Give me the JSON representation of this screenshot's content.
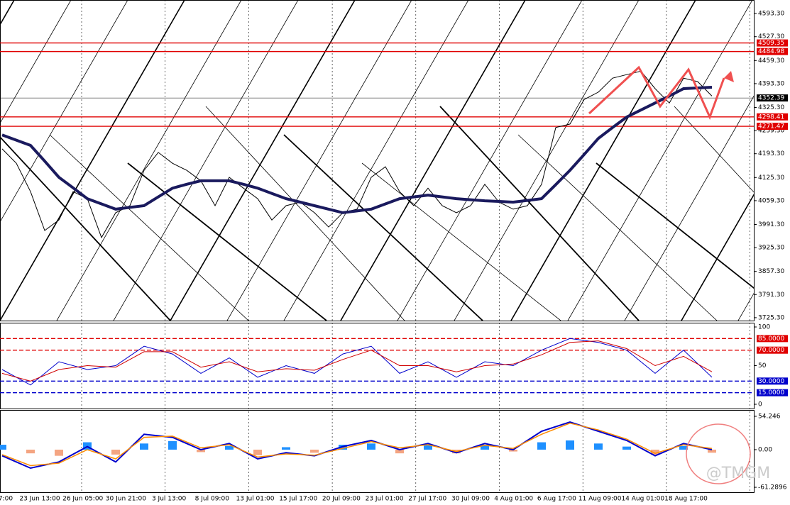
{
  "chart_data": [
    {
      "type": "line",
      "series": [
        {
          "color": "#000000",
          "width": 1,
          "values": [
            4207,
            4166,
            4085,
            3974,
            4004,
            4085,
            4065,
            3954,
            4025,
            4045,
            4146,
            4197,
            4166,
            4146,
            4116,
            4045,
            4126,
            4095,
            4065,
            4004,
            4045,
            4055,
            4025,
            3984,
            4025,
            4035,
            4126,
            4156,
            4085,
            4045,
            4095,
            4045,
            4025,
            4045,
            4106,
            4055,
            4035,
            4045,
            4106,
            4268,
            4278,
            4348,
            4369,
            4409,
            4419,
            4429,
            4379,
            4338,
            4409,
            4399,
            4358
          ]
        },
        {
          "color": "#1a1a5e",
          "width": 4,
          "values": [
            4247,
            4232,
            4217,
            4172,
            4126,
            4096,
            4065,
            4050,
            4035,
            4040,
            4045,
            4070,
            4095,
            4106,
            4116,
            4116,
            4116,
            4106,
            4095,
            4080,
            4065,
            4055,
            4045,
            4035,
            4025,
            4030,
            4035,
            4050,
            4065,
            4070,
            4075,
            4070,
            4065,
            4062,
            4059,
            4057,
            4055,
            4060,
            4065,
            4105,
            4146,
            4191,
            4237,
            4268,
            4298,
            4318,
            4338,
            4358,
            4379,
            4381,
            4383
          ]
        }
      ],
      "ylim": [
        3717,
        4632
      ],
      "yticks": [
        {
          "value": 4593.3,
          "label": "4593.30"
        },
        {
          "value": 4527.3,
          "label": "4527.30"
        },
        {
          "value": 4459.3,
          "label": "4459.30"
        },
        {
          "value": 4393.3,
          "label": "4393.30"
        },
        {
          "value": 4325.3,
          "label": "4325.30"
        },
        {
          "value": 4259.3,
          "label": "4259.30"
        },
        {
          "value": 4193.3,
          "label": "4193.30"
        },
        {
          "value": 4125.3,
          "label": "4125.30"
        },
        {
          "value": 4059.3,
          "label": "4059.30"
        },
        {
          "value": 3991.3,
          "label": "3991.30"
        },
        {
          "value": 3925.3,
          "label": "3925.30"
        },
        {
          "value": 3857.3,
          "label": "3857.30"
        },
        {
          "value": 3791.3,
          "label": "3791.30"
        },
        {
          "value": 3725.3,
          "label": "3725.30"
        }
      ],
      "levels": [
        {
          "value": 4509.35,
          "color": "#e00000"
        },
        {
          "value": 4484.98,
          "color": "#e00000"
        },
        {
          "value": 4352.39,
          "color": "#000000"
        },
        {
          "value": 4298.41,
          "color": "#e00000"
        },
        {
          "value": 4271.47,
          "color": "#e00000"
        }
      ]
    },
    {
      "type": "line",
      "series": [
        {
          "color": "#0000cc",
          "width": 1,
          "values": [
            45,
            25,
            55,
            45,
            50,
            75,
            65,
            40,
            60,
            35,
            50,
            40,
            65,
            75,
            40,
            55,
            35,
            55,
            50,
            70,
            85,
            80,
            70,
            40,
            70,
            35
          ]
        },
        {
          "color": "#d00000",
          "width": 1,
          "values": [
            40,
            30,
            45,
            50,
            48,
            68,
            68,
            48,
            55,
            42,
            46,
            44,
            58,
            70,
            50,
            50,
            42,
            50,
            52,
            64,
            80,
            82,
            72,
            50,
            62,
            42
          ]
        }
      ],
      "ylim": [
        -5.5,
        105.5
      ],
      "yticks": [
        100,
        50,
        0
      ],
      "levels": [
        {
          "value": 85,
          "label": "85.0000",
          "color": "#e00000"
        },
        {
          "value": 70,
          "label": "70.0000",
          "color": "#e00000"
        },
        {
          "value": 30,
          "label": "30.0000",
          "color": "#0000cc"
        },
        {
          "value": 15,
          "label": "15.0000",
          "color": "#0000cc"
        }
      ]
    },
    {
      "type": "bar",
      "values": [
        8,
        -6,
        -10,
        12,
        -8,
        10,
        14,
        -4,
        6,
        -9,
        4,
        -5,
        8,
        10,
        -6,
        7,
        -6,
        8,
        -3,
        12,
        15,
        10,
        5,
        -8,
        6,
        -5
      ],
      "value_colors": {
        "positive": "#1e90ff",
        "negative": "#f4a582"
      },
      "series": [
        {
          "color": "#0000cc",
          "width": 2,
          "values": [
            -10,
            -30,
            -20,
            5,
            -20,
            25,
            20,
            0,
            10,
            -15,
            -5,
            -10,
            5,
            15,
            0,
            10,
            -5,
            10,
            0,
            30,
            45,
            30,
            15,
            -10,
            10,
            0
          ]
        },
        {
          "color": "#ff8c00",
          "width": 1.5,
          "values": [
            -8,
            -26,
            -22,
            0,
            -15,
            20,
            22,
            3,
            8,
            -12,
            -7,
            -9,
            2,
            13,
            3,
            8,
            -3,
            7,
            2,
            25,
            43,
            32,
            17,
            -6,
            8,
            2
          ]
        }
      ],
      "ylim": [
        -69.3,
        64.6
      ],
      "yticks": [
        54.246,
        {
          "value": 0,
          "label": "0.00"
        },
        -61.2896
      ]
    }
  ],
  "time_axis": [
    "7:00",
    "23 Jun 13:00",
    "26 Jun 05:00",
    "30 Jun 21:00",
    "3 Jul 13:00",
    "8 Jul 09:00",
    "13 Jul 01:00",
    "15 Jul 17:00",
    "20 Jul 09:00",
    "23 Jul 01:00",
    "27 Jul 17:00",
    "30 Jul 09:00",
    "4 Aug 01:00",
    "6 Aug 17:00",
    "11 Aug 09:00",
    "14 Aug 01:00",
    "18 Aug 17:00"
  ],
  "watermark": "@TMGM"
}
